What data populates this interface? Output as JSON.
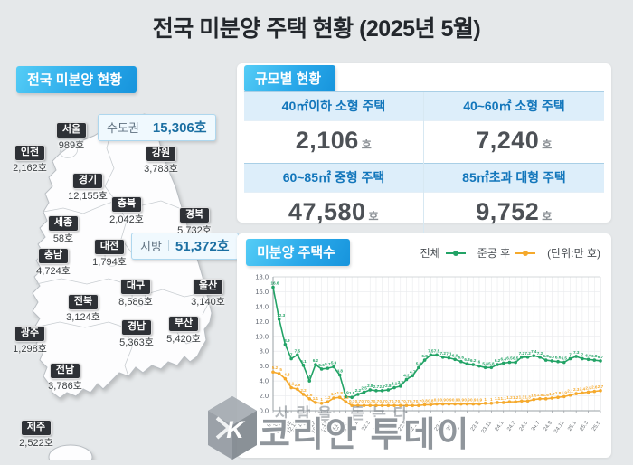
{
  "title": "전국 미분양 주택 현황  (2025년 5월)",
  "map_panel": {
    "header": "전국 미분양 현황",
    "callouts": [
      {
        "label": "수도권",
        "value": "15,306호"
      },
      {
        "label": "지방",
        "value": "51,372호"
      }
    ],
    "regions": [
      {
        "name": "서울",
        "value": "989호"
      },
      {
        "name": "인천",
        "value": "2,162호"
      },
      {
        "name": "경기",
        "value": "12,155호"
      },
      {
        "name": "강원",
        "value": "3,783호"
      },
      {
        "name": "충북",
        "value": "2,042호"
      },
      {
        "name": "경북",
        "value": "5,732호"
      },
      {
        "name": "세종",
        "value": "58호"
      },
      {
        "name": "대전",
        "value": "1,794호"
      },
      {
        "name": "충남",
        "value": "4,724호"
      },
      {
        "name": "대구",
        "value": "8,586호"
      },
      {
        "name": "울산",
        "value": "3,140호"
      },
      {
        "name": "전북",
        "value": "3,124호"
      },
      {
        "name": "경남",
        "value": "5,363호"
      },
      {
        "name": "부산",
        "value": "5,420호"
      },
      {
        "name": "광주",
        "value": "1,298호"
      },
      {
        "name": "전남",
        "value": "3,786호"
      },
      {
        "name": "제주",
        "value": "2,522호"
      }
    ]
  },
  "size_panel": {
    "header": "규모별 현황",
    "cells": [
      {
        "label": "40㎡이하 소형 주택",
        "value": "2,106",
        "unit": "호"
      },
      {
        "label": "40~60㎡ 소형 주택",
        "value": "7,240",
        "unit": "호"
      },
      {
        "label": "60~85㎡ 중형 주택",
        "value": "47,580",
        "unit": "호"
      },
      {
        "label": "85㎡초과 대형 주택",
        "value": "9,752",
        "unit": "호"
      }
    ]
  },
  "chart_panel": {
    "header": "미분양 주택수",
    "unit_note": "(단위:만 호)",
    "colors": {
      "total": "#22a366",
      "completed": "#f5a92c"
    }
  },
  "chart_data": {
    "type": "line",
    "title": "미분양 주택수",
    "unit": "만 호",
    "ylim": [
      0,
      18
    ],
    "ytick_step": 2,
    "grid": true,
    "legend_position": "top-right",
    "x": [
      "09.03",
      "09.12",
      "10.12",
      "11.12",
      "12.12",
      "13.12",
      "14.12",
      "15.12",
      "16.12",
      "17.12",
      "18.12",
      "19.12",
      "20.12",
      "21.12",
      "22.1",
      "22.2",
      "22.3",
      "22.4",
      "22.5",
      "22.6",
      "22.7",
      "22.8",
      "22.9",
      "22.10",
      "22.11",
      "22.12",
      "23.1",
      "23.2",
      "23.3",
      "23.4",
      "23.5",
      "23.6",
      "23.7",
      "23.8",
      "23.9",
      "23.10",
      "23.11",
      "23.12",
      "24.1",
      "24.2",
      "24.3",
      "24.4",
      "24.5",
      "24.6",
      "24.7",
      "24.8",
      "24.9",
      "24.10",
      "24.11",
      "24.12",
      "25.1",
      "25.2",
      "25.3",
      "25.4",
      "25.5"
    ],
    "x_ticks_shown": [
      "09.03",
      "09.12",
      "10.12",
      "11.12",
      "12.12",
      "13.12",
      "14.12",
      "15.12",
      "16.12",
      "17.12",
      "18.12",
      "19.12",
      "20.12",
      "21.12",
      "22.1",
      "22.3",
      "22.5",
      "22.7",
      "22.9",
      "22.11",
      "23.1",
      "23.3",
      "23.5",
      "23.7",
      "23.9",
      "23.11",
      "24.1",
      "24.3",
      "24.5",
      "24.7",
      "24.9",
      "24.11",
      "25.1",
      "25.3",
      "25.5"
    ],
    "series": [
      {
        "name": "전체",
        "color": "#22a366",
        "values": [
          16.6,
          12.3,
          8.9,
          7.0,
          7.5,
          6.1,
          4.0,
          6.2,
          5.6,
          5.7,
          5.9,
          4.8,
          1.9,
          1.8,
          2.2,
          2.5,
          2.8,
          2.7,
          2.7,
          2.8,
          3.1,
          3.3,
          4.2,
          4.7,
          5.8,
          6.8,
          7.5,
          7.5,
          7.2,
          7.1,
          6.9,
          6.6,
          6.3,
          6.2,
          6.0,
          5.8,
          5.8,
          6.2,
          6.4,
          6.5,
          6.5,
          7.2,
          7.2,
          7.4,
          7.2,
          6.8,
          6.7,
          6.6,
          6.5,
          7.0,
          7.3,
          7.0,
          6.9,
          6.8,
          6.7
        ]
      },
      {
        "name": "준공 후",
        "color": "#f5a92c",
        "values": [
          5.2,
          5.0,
          4.3,
          3.1,
          2.9,
          2.2,
          1.6,
          1.1,
          1.0,
          1.2,
          1.7,
          1.8,
          1.2,
          0.7,
          0.7,
          0.7,
          0.7,
          0.7,
          0.7,
          0.7,
          0.7,
          0.7,
          0.7,
          0.7,
          0.7,
          0.8,
          0.8,
          0.9,
          0.9,
          0.9,
          0.9,
          0.9,
          0.9,
          0.9,
          0.9,
          1.0,
          1.0,
          1.1,
          1.1,
          1.2,
          1.2,
          1.3,
          1.3,
          1.5,
          1.6,
          1.6,
          1.7,
          1.8,
          1.9,
          2.1,
          2.3,
          2.4,
          2.5,
          2.6,
          2.7
        ]
      }
    ]
  },
  "watermark": {
    "slogan": "사람을 듣는다",
    "brand": "코리안 투데이",
    "logo": "K"
  }
}
